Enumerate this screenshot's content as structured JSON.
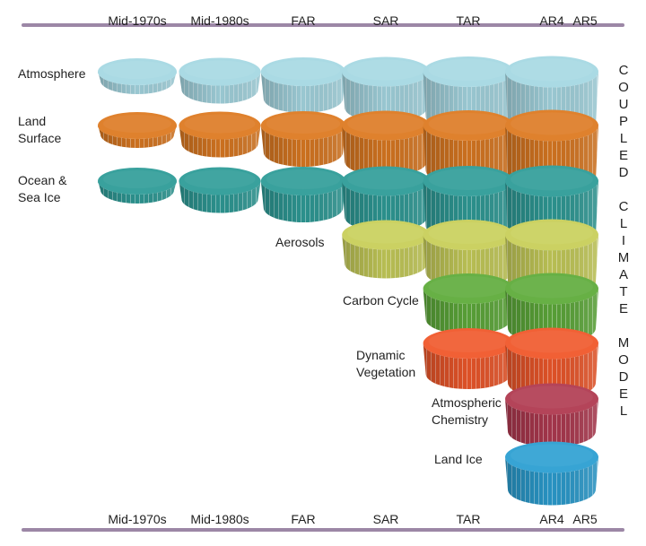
{
  "eras": [
    "Mid-1970s",
    "Mid-1980s",
    "FAR",
    "SAR",
    "TAR",
    "AR4",
    "AR5"
  ],
  "components": [
    {
      "name": "Atmosphere",
      "label_lines": [
        "Atmosphere"
      ],
      "color": "#a6d8e3",
      "starts_at": "Mid-1970s"
    },
    {
      "name": "Land Surface",
      "label_lines": [
        "Land",
        "Surface"
      ],
      "color": "#dd7a22",
      "starts_at": "Mid-1970s"
    },
    {
      "name": "Ocean & Sea Ice",
      "label_lines": [
        "Ocean &",
        "Sea Ice"
      ],
      "color": "#2f9c98",
      "starts_at": "Mid-1970s"
    },
    {
      "name": "Aerosols",
      "label_lines": [
        "Aerosols"
      ],
      "color": "#c8cf5a",
      "starts_at": "SAR"
    },
    {
      "name": "Carbon Cycle",
      "label_lines": [
        "Carbon Cycle"
      ],
      "color": "#5fac3b",
      "starts_at": "TAR"
    },
    {
      "name": "Dynamic Vegetation",
      "label_lines": [
        "Dynamic",
        "Vegetation"
      ],
      "color": "#f0582a",
      "starts_at": "TAR"
    },
    {
      "name": "Atmospheric Chemistry",
      "label_lines": [
        "Atmospheric",
        "Chemistry"
      ],
      "color": "#b03a50",
      "starts_at": "AR4"
    },
    {
      "name": "Land Ice",
      "label_lines": [
        "Land Ice"
      ],
      "color": "#2c9fd2",
      "starts_at": "AR5"
    }
  ],
  "side_title": [
    "COUPLED",
    "CLIMATE",
    "MODEL"
  ],
  "colors": {
    "rule": "#9c87a6",
    "text": "#222222"
  }
}
